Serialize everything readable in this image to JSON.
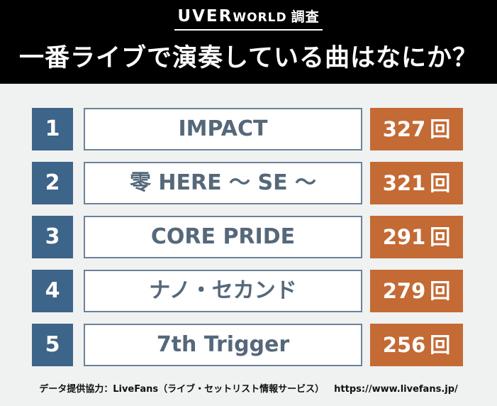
{
  "header": {
    "brand_upper": "UVER",
    "brand_lower": "WORLD",
    "brand_suffix": "調査",
    "headline": "一番ライブで演奏している曲はなにか？"
  },
  "chart_data": {
    "type": "table",
    "rows": [
      {
        "rank": "1",
        "song": "IMPACT",
        "count": 327,
        "count_label": "327",
        "unit": "回"
      },
      {
        "rank": "2",
        "song": "零 HERE ～ SE ～",
        "count": 321,
        "count_label": "321",
        "unit": "回"
      },
      {
        "rank": "3",
        "song": "CORE PRIDE",
        "count": 291,
        "count_label": "291",
        "unit": "回"
      },
      {
        "rank": "4",
        "song": "ナノ・セカンド",
        "count": 279,
        "count_label": "279",
        "unit": "回"
      },
      {
        "rank": "5",
        "song": "7th Trigger",
        "count": 256,
        "count_label": "256",
        "unit": "回"
      }
    ]
  },
  "footer": {
    "source": "データ提供協力：LiveFans（ライブ・セットリスト情報サービス）",
    "url": "https://www.livefans.jp/"
  },
  "colors": {
    "rank_bg": "#3d6489",
    "count_bg": "#c46a35",
    "song_border": "#6b8299",
    "song_text": "#55687a"
  }
}
